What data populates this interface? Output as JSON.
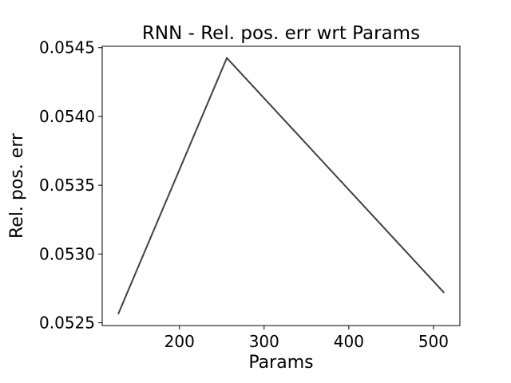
{
  "chart_data": {
    "type": "line",
    "title": "RNN - Rel. pos. err wrt Params",
    "xlabel": "Params",
    "ylabel": "Rel. pos. err",
    "x": [
      128,
      256,
      512
    ],
    "series": [
      {
        "values": [
          0.052568,
          0.054425,
          0.052722
        ],
        "color": "#404040"
      }
    ],
    "xlim": [
      108.8,
      531.2
    ],
    "ylim": [
      0.05248,
      0.05451
    ],
    "xticks": [
      200,
      300,
      400,
      500
    ],
    "xtick_labels": [
      "200",
      "300",
      "400",
      "500"
    ],
    "yticks": [
      0.0525,
      0.053,
      0.0535,
      0.054,
      0.0545
    ],
    "ytick_labels": [
      "0.0525",
      "0.0530",
      "0.0535",
      "0.0540",
      "0.0545"
    ],
    "grid": false,
    "legend": "none"
  }
}
